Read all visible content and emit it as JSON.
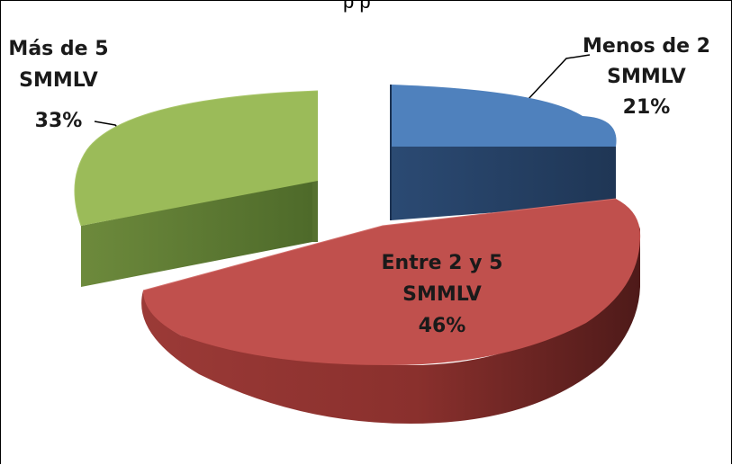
{
  "chart_data": {
    "type": "pie",
    "style": "3d-exploded",
    "header_fragment": "p    p",
    "slices": [
      {
        "label_lines": [
          "Menos de 2",
          "SMMLV"
        ],
        "percent_label": "21%",
        "value": 21,
        "color": "#4F81BD"
      },
      {
        "label_lines": [
          "Entre 2 y 5",
          "SMMLV"
        ],
        "percent_label": "46%",
        "value": 46,
        "color": "#C0504D"
      },
      {
        "label_lines": [
          "Más de 5",
          "SMMLV"
        ],
        "percent_label": "33%",
        "value": 33,
        "color": "#9BBB59"
      }
    ]
  }
}
